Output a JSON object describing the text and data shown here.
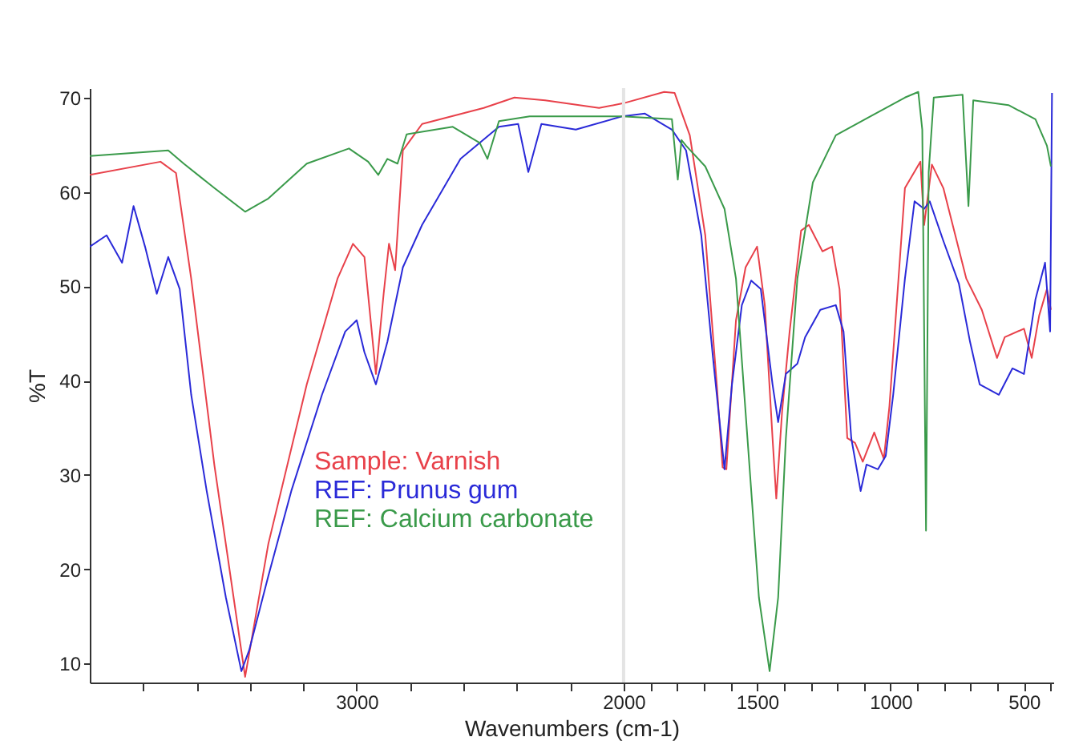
{
  "chart_data": {
    "type": "line",
    "xlabel": "Wavenumbers (cm-1)",
    "ylabel": "%T",
    "xlim": [
      4000,
      390
    ],
    "ylim": [
      8,
      71
    ],
    "xticks": [
      {
        "value": 3800,
        "label": null
      },
      {
        "value": 3600,
        "label": null
      },
      {
        "value": 3400,
        "label": null
      },
      {
        "value": 3200,
        "label": null
      },
      3000,
      {
        "value": 2800,
        "label": null
      },
      {
        "value": 2600,
        "label": null
      },
      {
        "value": 2400,
        "label": null
      },
      {
        "value": 2200,
        "label": null
      },
      2000,
      {
        "value": 1900,
        "label": null
      },
      {
        "value": 1800,
        "label": null
      },
      {
        "value": 1700,
        "label": null
      },
      {
        "value": 1600,
        "label": null
      },
      1500,
      {
        "value": 1400,
        "label": null
      },
      {
        "value": 1300,
        "label": null
      },
      {
        "value": 1200,
        "label": null
      },
      {
        "value": 1100,
        "label": null
      },
      1000,
      {
        "value": 900,
        "label": null
      },
      {
        "value": 800,
        "label": null
      },
      {
        "value": 700,
        "label": null
      },
      {
        "value": 600,
        "label": null
      },
      500,
      {
        "value": 400,
        "label": null
      }
    ],
    "yticks": [
      10,
      20,
      30,
      40,
      50,
      60,
      70
    ],
    "grid": false,
    "legend": "bottom left",
    "ref_lines": [
      {
        "axis": "x",
        "value": 2000,
        "color": "#e4e4e4"
      }
    ],
    "series": [
      {
        "name": "Sample: Varnish",
        "color": "#e8414a",
        "x": [
          4000,
          3735,
          3677,
          3620,
          3533,
          3418,
          3331,
          3187,
          3072,
          3014,
          2971,
          2928,
          2899,
          2879,
          2856,
          2827,
          2755,
          2524,
          2409,
          2294,
          2092,
          2000,
          1848,
          1809,
          1752,
          1694,
          1651,
          1629,
          1615,
          1579,
          1543,
          1500,
          1471,
          1442,
          1428,
          1406,
          1378,
          1335,
          1306,
          1255,
          1219,
          1191,
          1162,
          1133,
          1104,
          1061,
          1025,
          1004,
          946,
          888,
          874,
          845,
          802,
          716,
          658,
          601,
          572,
          500,
          471,
          443,
          414,
          399
        ],
        "values": [
          61.8,
          63.2,
          62,
          50.8,
          31,
          8.6,
          22.7,
          39.6,
          50.8,
          54.5,
          53.1,
          40.7,
          49.2,
          54.5,
          51.7,
          64.4,
          67.2,
          68.9,
          70,
          69.7,
          68.9,
          69.4,
          70.6,
          70.5,
          66,
          55.4,
          39.6,
          30.8,
          30.6,
          46.4,
          52,
          54.2,
          48,
          33.9,
          27.5,
          36.8,
          45.2,
          55.9,
          56.5,
          53.7,
          54.2,
          49.7,
          33.9,
          33.4,
          31.4,
          34.5,
          31.7,
          37.3,
          60.4,
          63.2,
          56.5,
          62.9,
          60.4,
          50.8,
          47.5,
          42.4,
          44.6,
          45.5,
          42.4,
          46.9,
          49.7,
          47.5
        ]
      },
      {
        "name": "REF: Prunus gum",
        "color": "#2a2ad8",
        "x": [
          4000,
          3937,
          3879,
          3836,
          3793,
          3749,
          3706,
          3663,
          3620,
          3562,
          3490,
          3432,
          3403,
          3331,
          3245,
          3130,
          3043,
          3000,
          2971,
          2928,
          2885,
          2827,
          2755,
          2611,
          2467,
          2395,
          2357,
          2308,
          2179,
          2006,
          1920,
          1819,
          1766,
          1709,
          1665,
          1622,
          1594,
          1557,
          1522,
          1486,
          1442,
          1421,
          1392,
          1349,
          1320,
          1263,
          1205,
          1176,
          1147,
          1112,
          1090,
          1047,
          1018,
          990,
          946,
          910,
          874,
          853,
          802,
          744,
          702,
          666,
          594,
          543,
          500,
          457,
          421,
          402,
          395
        ],
        "values": [
          54.2,
          55.4,
          52.5,
          58.5,
          54.2,
          49.2,
          53.1,
          49.7,
          38.5,
          28.3,
          17,
          9.2,
          11.4,
          19.3,
          28.3,
          38.5,
          45.2,
          46.4,
          43,
          39.6,
          44.1,
          52,
          56.5,
          63.5,
          66.9,
          67.2,
          62.1,
          67.2,
          66.6,
          68,
          68.3,
          66.6,
          64.4,
          55.4,
          42.4,
          30.6,
          39.6,
          48,
          50.6,
          49.7,
          39.6,
          35.6,
          40.7,
          41.8,
          44.6,
          47.5,
          48,
          45.2,
          33.9,
          28.3,
          31.1,
          30.6,
          32,
          38.5,
          50.8,
          59,
          58.2,
          59,
          54.8,
          50.3,
          44.1,
          39.6,
          38.5,
          41.3,
          40.7,
          48.6,
          52.5,
          45.2,
          70.5
        ]
      },
      {
        "name": "REF: Calcium carbonate",
        "color": "#3a9a4a",
        "x": [
          4000,
          3706,
          3648,
          3533,
          3418,
          3331,
          3187,
          3029,
          2957,
          2919,
          2885,
          2847,
          2813,
          2640,
          2539,
          2510,
          2467,
          2352,
          2006,
          1819,
          1797,
          1783,
          1766,
          1694,
          1622,
          1579,
          1536,
          1493,
          1453,
          1421,
          1392,
          1349,
          1291,
          1205,
          1076,
          946,
          896,
          881,
          867,
          857,
          838,
          730,
          708,
          690,
          558,
          457,
          414,
          399
        ],
        "values": [
          63.8,
          64.4,
          63,
          60.4,
          57.9,
          59.3,
          63,
          64.6,
          63.2,
          61.8,
          63.5,
          63,
          66.1,
          66.9,
          65.2,
          63.5,
          67.5,
          68,
          68,
          67.7,
          61.3,
          65.5,
          64.9,
          62.7,
          58.2,
          50.8,
          33.9,
          17,
          9.2,
          17,
          33.9,
          50.8,
          61,
          66,
          68,
          70,
          70.6,
          66.6,
          24.1,
          62.1,
          70,
          70.3,
          58.5,
          69.7,
          69.2,
          67.7,
          64.9,
          62.7
        ]
      }
    ]
  }
}
